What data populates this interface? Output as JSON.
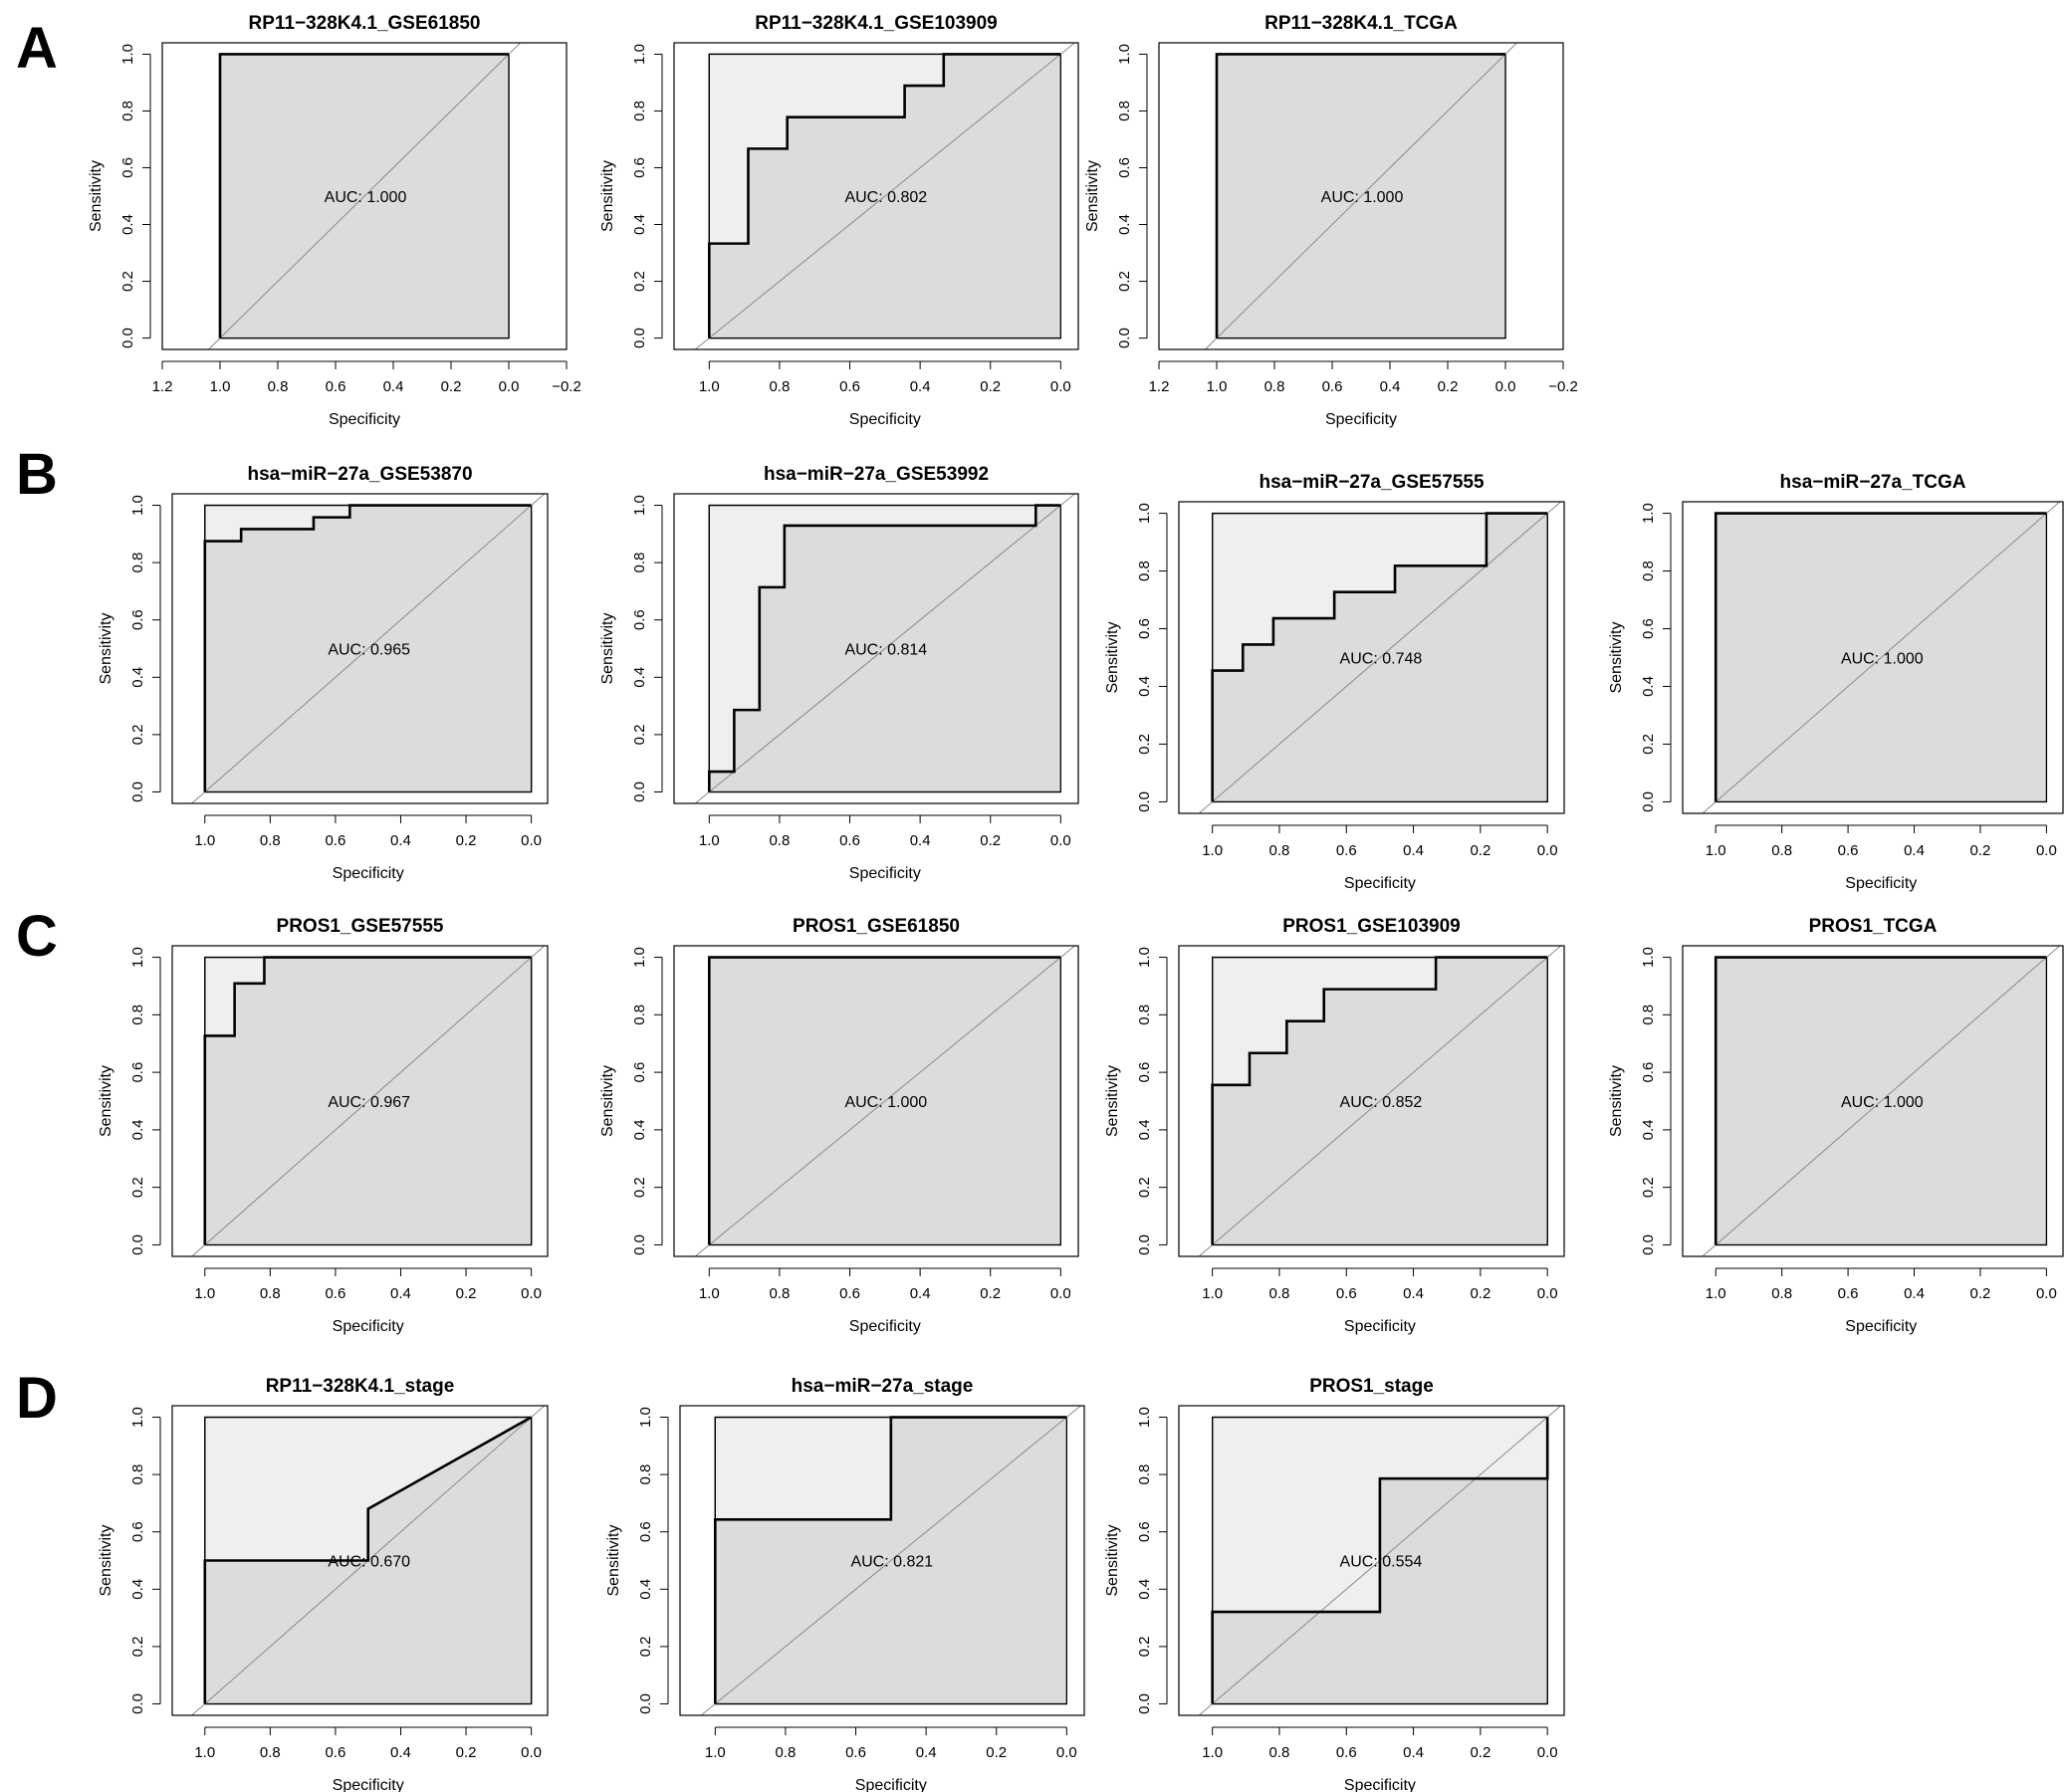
{
  "panel_labels": [
    "A",
    "B",
    "C",
    "D"
  ],
  "chart_data": [
    {
      "type": "line",
      "panel": "A",
      "title": "RP11−328K4.1_GSE61850",
      "xlabel": "Specificity",
      "ylabel": "Sensitivity",
      "auc_label": "AUC: 1.000",
      "xlim": [
        1.2,
        -0.2
      ],
      "x_ticks": [
        "1.2",
        "1.0",
        "0.8",
        "0.6",
        "0.4",
        "0.2",
        "0.0",
        "−0.2"
      ],
      "y_ticks": [
        "0.0",
        "0.2",
        "0.4",
        "0.6",
        "0.8",
        "1.0"
      ],
      "series": [
        {
          "x": [
            1.0,
            1.0,
            0.0
          ],
          "y": [
            0.0,
            1.0,
            1.0
          ]
        }
      ]
    },
    {
      "type": "line",
      "panel": "A",
      "title": "RP11−328K4.1_GSE103909",
      "xlabel": "Specificity",
      "ylabel": "Sensitivity",
      "auc_label": "AUC: 0.802",
      "xlim": [
        1.1,
        -0.05
      ],
      "x_ticks": [
        "1.0",
        "0.8",
        "0.6",
        "0.4",
        "0.2",
        "0.0"
      ],
      "y_ticks": [
        "0.0",
        "0.2",
        "0.4",
        "0.6",
        "0.8",
        "1.0"
      ],
      "series": [
        {
          "x": [
            1.0,
            1.0,
            0.889,
            0.889,
            0.778,
            0.778,
            0.444,
            0.444,
            0.333,
            0.333,
            0.0
          ],
          "y": [
            0.0,
            0.333,
            0.333,
            0.667,
            0.667,
            0.778,
            0.778,
            0.889,
            0.889,
            1.0,
            1.0
          ]
        }
      ]
    },
    {
      "type": "line",
      "panel": "A",
      "title": "RP11−328K4.1_TCGA",
      "xlabel": "Specificity",
      "ylabel": "Sensitivity",
      "auc_label": "AUC: 1.000",
      "xlim": [
        1.2,
        -0.2
      ],
      "x_ticks": [
        "1.2",
        "1.0",
        "0.8",
        "0.6",
        "0.4",
        "0.2",
        "0.0",
        "−0.2"
      ],
      "y_ticks": [
        "0.0",
        "0.2",
        "0.4",
        "0.6",
        "0.8",
        "1.0"
      ],
      "series": [
        {
          "x": [
            1.0,
            1.0,
            0.0
          ],
          "y": [
            0.0,
            1.0,
            1.0
          ]
        }
      ]
    },
    {
      "type": "line",
      "panel": "B",
      "title": "hsa−miR−27a_GSE53870",
      "xlabel": "Specificity",
      "ylabel": "Sensitivity",
      "auc_label": "AUC: 0.965",
      "xlim": [
        1.1,
        -0.05
      ],
      "x_ticks": [
        "1.0",
        "0.8",
        "0.6",
        "0.4",
        "0.2",
        "0.0"
      ],
      "y_ticks": [
        "0.0",
        "0.2",
        "0.4",
        "0.6",
        "0.8",
        "1.0"
      ],
      "series": [
        {
          "x": [
            1.0,
            1.0,
            0.889,
            0.889,
            0.667,
            0.667,
            0.556,
            0.556,
            0.0
          ],
          "y": [
            0.0,
            0.875,
            0.875,
            0.917,
            0.917,
            0.958,
            0.958,
            1.0,
            1.0
          ]
        }
      ]
    },
    {
      "type": "line",
      "panel": "B",
      "title": "hsa−miR−27a_GSE53992",
      "xlabel": "Specificity",
      "ylabel": "Sensitivity",
      "auc_label": "AUC: 0.814",
      "xlim": [
        1.1,
        -0.05
      ],
      "x_ticks": [
        "1.0",
        "0.8",
        "0.6",
        "0.4",
        "0.2",
        "0.0"
      ],
      "y_ticks": [
        "0.0",
        "0.2",
        "0.4",
        "0.6",
        "0.8",
        "1.0"
      ],
      "series": [
        {
          "x": [
            1.0,
            1.0,
            0.929,
            0.929,
            0.857,
            0.857,
            0.786,
            0.786,
            0.071,
            0.071,
            0.0
          ],
          "y": [
            0.0,
            0.071,
            0.071,
            0.286,
            0.286,
            0.714,
            0.714,
            0.929,
            0.929,
            1.0,
            1.0
          ]
        }
      ]
    },
    {
      "type": "line",
      "panel": "B",
      "title": "hsa−miR−27a_GSE57555",
      "xlabel": "Specificity",
      "ylabel": "Sensitivity",
      "auc_label": "AUC: 0.748",
      "xlim": [
        1.1,
        -0.05
      ],
      "x_ticks": [
        "1.0",
        "0.8",
        "0.6",
        "0.4",
        "0.2",
        "0.0"
      ],
      "y_ticks": [
        "0.0",
        "0.2",
        "0.4",
        "0.6",
        "0.8",
        "1.0"
      ],
      "series": [
        {
          "x": [
            1.0,
            1.0,
            0.909,
            0.909,
            0.818,
            0.818,
            0.636,
            0.636,
            0.455,
            0.455,
            0.182,
            0.182,
            0.0
          ],
          "y": [
            0.0,
            0.455,
            0.455,
            0.545,
            0.545,
            0.636,
            0.636,
            0.727,
            0.727,
            0.818,
            0.818,
            1.0,
            1.0
          ]
        }
      ]
    },
    {
      "type": "line",
      "panel": "B",
      "title": "hsa−miR−27a_TCGA",
      "xlabel": "Specificity",
      "ylabel": "Sensitivity",
      "auc_label": "AUC: 1.000",
      "xlim": [
        1.1,
        -0.05
      ],
      "x_ticks": [
        "1.0",
        "0.8",
        "0.6",
        "0.4",
        "0.2",
        "0.0"
      ],
      "y_ticks": [
        "0.0",
        "0.2",
        "0.4",
        "0.6",
        "0.8",
        "1.0"
      ],
      "series": [
        {
          "x": [
            1.0,
            1.0,
            0.0
          ],
          "y": [
            0.0,
            1.0,
            1.0
          ]
        }
      ]
    },
    {
      "type": "line",
      "panel": "C",
      "title": "PROS1_GSE57555",
      "xlabel": "Specificity",
      "ylabel": "Sensitivity",
      "auc_label": "AUC: 0.967",
      "xlim": [
        1.1,
        -0.05
      ],
      "x_ticks": [
        "1.0",
        "0.8",
        "0.6",
        "0.4",
        "0.2",
        "0.0"
      ],
      "y_ticks": [
        "0.0",
        "0.2",
        "0.4",
        "0.6",
        "0.8",
        "1.0"
      ],
      "series": [
        {
          "x": [
            1.0,
            1.0,
            0.909,
            0.909,
            0.818,
            0.818,
            0.0
          ],
          "y": [
            0.0,
            0.727,
            0.727,
            0.909,
            0.909,
            1.0,
            1.0
          ]
        }
      ]
    },
    {
      "type": "line",
      "panel": "C",
      "title": "PROS1_GSE61850",
      "xlabel": "Specificity",
      "ylabel": "Sensitivity",
      "auc_label": "AUC: 1.000",
      "xlim": [
        1.1,
        -0.05
      ],
      "x_ticks": [
        "1.0",
        "0.8",
        "0.6",
        "0.4",
        "0.2",
        "0.0"
      ],
      "y_ticks": [
        "0.0",
        "0.2",
        "0.4",
        "0.6",
        "0.8",
        "1.0"
      ],
      "series": [
        {
          "x": [
            1.0,
            1.0,
            0.0
          ],
          "y": [
            0.0,
            1.0,
            1.0
          ]
        }
      ]
    },
    {
      "type": "line",
      "panel": "C",
      "title": "PROS1_GSE103909",
      "xlabel": "Specificity",
      "ylabel": "Sensitivity",
      "auc_label": "AUC: 0.852",
      "xlim": [
        1.1,
        -0.05
      ],
      "x_ticks": [
        "1.0",
        "0.8",
        "0.6",
        "0.4",
        "0.2",
        "0.0"
      ],
      "y_ticks": [
        "0.0",
        "0.2",
        "0.4",
        "0.6",
        "0.8",
        "1.0"
      ],
      "series": [
        {
          "x": [
            1.0,
            1.0,
            0.889,
            0.889,
            0.778,
            0.778,
            0.667,
            0.667,
            0.333,
            0.333,
            0.0
          ],
          "y": [
            0.0,
            0.556,
            0.556,
            0.667,
            0.667,
            0.778,
            0.778,
            0.889,
            0.889,
            1.0,
            1.0
          ]
        }
      ]
    },
    {
      "type": "line",
      "panel": "C",
      "title": "PROS1_TCGA",
      "xlabel": "Specificity",
      "ylabel": "Sensitivity",
      "auc_label": "AUC: 1.000",
      "xlim": [
        1.1,
        -0.05
      ],
      "x_ticks": [
        "1.0",
        "0.8",
        "0.6",
        "0.4",
        "0.2",
        "0.0"
      ],
      "y_ticks": [
        "0.0",
        "0.2",
        "0.4",
        "0.6",
        "0.8",
        "1.0"
      ],
      "series": [
        {
          "x": [
            1.0,
            1.0,
            0.0
          ],
          "y": [
            0.0,
            1.0,
            1.0
          ]
        }
      ]
    },
    {
      "type": "line",
      "panel": "D",
      "title": "RP11−328K4.1_stage",
      "xlabel": "Specificity",
      "ylabel": "Sensitivity",
      "auc_label": "AUC: 0.670",
      "xlim": [
        1.1,
        -0.05
      ],
      "x_ticks": [
        "1.0",
        "0.8",
        "0.6",
        "0.4",
        "0.2",
        "0.0"
      ],
      "y_ticks": [
        "0.0",
        "0.2",
        "0.4",
        "0.6",
        "0.8",
        "1.0"
      ],
      "series": [
        {
          "x": [
            1.0,
            1.0,
            0.5,
            0.5,
            0.0
          ],
          "y": [
            0.0,
            0.5,
            0.5,
            0.68,
            1.0
          ]
        }
      ]
    },
    {
      "type": "line",
      "panel": "D",
      "title": "hsa−miR−27a_stage",
      "xlabel": "Specificity",
      "ylabel": "Sensitivity",
      "auc_label": "AUC: 0.821",
      "xlim": [
        1.1,
        -0.05
      ],
      "x_ticks": [
        "1.0",
        "0.8",
        "0.6",
        "0.4",
        "0.2",
        "0.0"
      ],
      "y_ticks": [
        "0.0",
        "0.2",
        "0.4",
        "0.6",
        "0.8",
        "1.0"
      ],
      "series": [
        {
          "x": [
            1.0,
            1.0,
            0.5,
            0.5,
            0.0
          ],
          "y": [
            0.0,
            0.643,
            0.643,
            1.0,
            1.0
          ]
        }
      ]
    },
    {
      "type": "line",
      "panel": "D",
      "title": "PROS1_stage",
      "xlabel": "Specificity",
      "ylabel": "Sensitivity",
      "auc_label": "AUC: 0.554",
      "xlim": [
        1.1,
        -0.05
      ],
      "x_ticks": [
        "1.0",
        "0.8",
        "0.6",
        "0.4",
        "0.2",
        "0.0"
      ],
      "y_ticks": [
        "0.0",
        "0.2",
        "0.4",
        "0.6",
        "0.8",
        "1.0"
      ],
      "series": [
        {
          "x": [
            1.0,
            1.0,
            0.5,
            0.5,
            0.0,
            0.0
          ],
          "y": [
            0.0,
            0.321,
            0.321,
            0.786,
            0.786,
            1.0
          ]
        }
      ]
    }
  ]
}
